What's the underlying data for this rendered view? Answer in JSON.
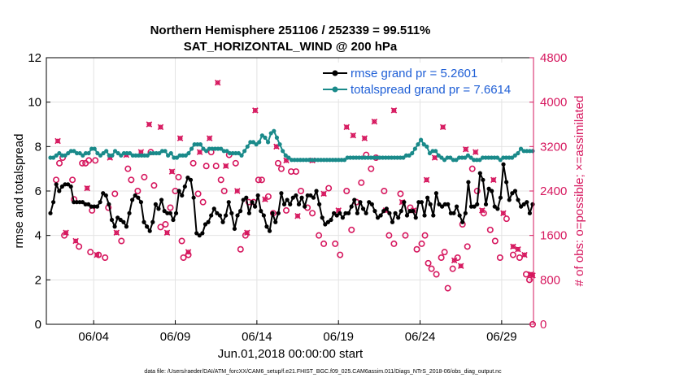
{
  "colors": {
    "black": "#000000",
    "teal": "#1a8a8a",
    "obs": "#d6175e",
    "legend_text": "#1f5fd6",
    "grid": "#e3e3e3"
  },
  "chart_data": {
    "type": "line",
    "title": "Northern Hemisphere 251106 / 252339 = 99.511%",
    "subtitle": "SAT_HORIZONTAL_WIND @ 200 hPa",
    "xlabel": "Jun.01,2018 00:00:00 start",
    "ylabel": "rmse and totalspread",
    "ylabel_right": "# of obs: o=possible; ×=assimilated",
    "footnote": "data file: /Users/raeder/DAI/ATM_forcXX/CAM6_setup/f.e21.FHIST_BGC.f09_025.CAM6assim.011/Diags_NTrS_2018-06/obs_diag_output.nc",
    "xlim": [
      0.6,
      30.45
    ],
    "ylim": [
      0,
      12
    ],
    "ylim_right": [
      0,
      4800
    ],
    "x_ticks": [
      {
        "x": 3.5,
        "label": "06/04"
      },
      {
        "x": 8.5,
        "label": "06/09"
      },
      {
        "x": 13.5,
        "label": "06/14"
      },
      {
        "x": 18.5,
        "label": "06/19"
      },
      {
        "x": 23.5,
        "label": "06/24"
      },
      {
        "x": 28.5,
        "label": "06/29"
      }
    ],
    "y_ticks": [
      "0",
      "2",
      "4",
      "6",
      "8",
      "10",
      "12"
    ],
    "y_ticks_right": [
      "0",
      "800",
      "1600",
      "2400",
      "3200",
      "4000",
      "4800"
    ],
    "grid": true,
    "series": [
      {
        "name": "rmse grand pr = 5.2601",
        "axis": "left",
        "values": [
          5.0,
          5.5,
          6.3,
          6.0,
          6.2,
          6.3,
          6.3,
          6.2,
          5.5,
          5.5,
          5.5,
          5.5,
          5.4,
          5.4,
          5.3,
          5.3,
          5.3,
          5.5,
          5.9,
          5.8,
          5.4,
          4.7,
          4.4,
          4.8,
          4.7,
          4.6,
          4.4,
          5.0,
          5.6,
          5.8,
          5.7,
          5.5,
          4.6,
          4.4,
          4.2,
          4.6,
          5.4,
          5.2,
          5.6,
          5.1,
          5.0,
          5.0,
          4.7,
          5.0,
          6.0,
          5.8,
          6.2,
          6.6,
          6.5,
          5.7,
          4.1,
          4.0,
          4.1,
          4.5,
          4.6,
          4.9,
          5.2,
          5.0,
          4.9,
          4.6,
          4.9,
          5.5,
          5.0,
          4.3,
          4.9,
          5.1,
          5.6,
          5.7,
          5.0,
          5.5,
          5.3,
          5.8,
          5.1,
          4.9,
          4.4,
          4.2,
          5.0,
          4.6,
          5.0,
          5.9,
          5.4,
          5.6,
          5.4,
          5.7,
          5.8,
          5.4,
          5.7,
          5.3,
          5.8,
          5.8,
          5.7,
          6.0,
          5.4,
          4.8,
          4.5,
          4.6,
          4.7,
          5.0,
          4.9,
          5.0,
          4.8,
          5.0,
          5.0,
          5.3,
          5.6,
          5.0,
          5.5,
          5.2,
          5.0,
          5.5,
          5.4,
          5.1,
          4.8,
          4.9,
          5.1,
          5.2,
          5.0,
          4.6,
          5.0,
          4.8,
          5.1,
          5.5,
          4.9,
          5.1,
          5.1,
          4.8,
          5.5,
          5.5,
          4.9,
          5.7,
          5.4,
          4.9,
          5.9,
          5.4,
          5.3,
          5.4,
          5.4,
          5.0,
          5.0,
          5.3,
          4.9,
          4.6,
          5.0,
          6.4,
          5.3,
          5.3,
          5.4,
          6.8,
          6.5,
          5.4,
          6.1,
          6.0,
          5.3,
          5.2,
          5.7,
          7.2,
          6.4,
          5.6,
          5.9,
          6.0,
          5.6,
          5.3,
          5.4,
          5.5,
          5.0,
          5.4
        ]
      },
      {
        "name": "totalspread grand pr = 7.6614",
        "axis": "left",
        "values": [
          7.5,
          7.5,
          7.6,
          7.7,
          7.6,
          7.6,
          7.7,
          7.8,
          7.8,
          7.7,
          7.7,
          7.6,
          7.7,
          7.7,
          7.9,
          7.9,
          7.7,
          7.6,
          7.7,
          7.8,
          7.6,
          7.6,
          7.8,
          7.7,
          7.6,
          7.7,
          7.7,
          7.7,
          7.6,
          7.6,
          7.6,
          7.6,
          7.6,
          7.6,
          7.7,
          7.7,
          7.7,
          7.7,
          7.8,
          7.8,
          7.6,
          7.7,
          7.5,
          7.5,
          7.6,
          7.6,
          7.6,
          7.7,
          7.9,
          8.1,
          8.1,
          8.1,
          7.9,
          7.8,
          7.9,
          7.9,
          7.9,
          7.9,
          7.9,
          7.8,
          7.8,
          7.7,
          7.7,
          7.7,
          7.7,
          7.6,
          7.8,
          8.0,
          8.2,
          8.2,
          8.1,
          8.2,
          8.5,
          8.4,
          8.2,
          8.6,
          8.7,
          8.4,
          8.1,
          7.8,
          7.6,
          7.5,
          7.4,
          7.4,
          7.4,
          7.4,
          7.4,
          7.4,
          7.4,
          7.4,
          7.4,
          7.4,
          7.4,
          7.4,
          7.4,
          7.4,
          7.4,
          7.4,
          7.4,
          7.4,
          7.4,
          7.5,
          7.5,
          7.5,
          7.5,
          7.5,
          7.5,
          7.5,
          7.5,
          7.5,
          7.5,
          7.5,
          7.5,
          7.5,
          7.5,
          7.5,
          7.5,
          7.5,
          7.5,
          7.5,
          7.5,
          7.6,
          7.6,
          7.7,
          7.9,
          8.1,
          8.3,
          8.1,
          8.0,
          7.7,
          7.8,
          7.8,
          7.6,
          7.5,
          7.4,
          7.5,
          7.5,
          7.4,
          7.4,
          7.5,
          7.5,
          7.5,
          7.6,
          7.5,
          7.4,
          7.4,
          7.4,
          7.5,
          7.5,
          7.5,
          7.5,
          7.5,
          7.5,
          7.4,
          7.5,
          7.5,
          7.5,
          7.5,
          7.6,
          7.7,
          7.9,
          7.8,
          7.8,
          7.8,
          7.8
        ]
      }
    ],
    "obs_possible": {
      "name": "# of obs possible",
      "axis": "right",
      "points": [
        [
          1.2,
          2600
        ],
        [
          1.4,
          2900
        ],
        [
          1.7,
          1600
        ],
        [
          1.6,
          3000
        ],
        [
          2.2,
          2600
        ],
        [
          2.3,
          2250
        ],
        [
          2.6,
          1400
        ],
        [
          2.8,
          2900
        ],
        [
          3.0,
          2900
        ],
        [
          3.2,
          2950
        ],
        [
          3.6,
          2950
        ],
        [
          3.4,
          2050
        ],
        [
          3.3,
          1300
        ],
        [
          3.8,
          1250
        ],
        [
          4.2,
          1200
        ],
        [
          4.4,
          2100
        ],
        [
          4.8,
          2350
        ],
        [
          5.2,
          1500
        ],
        [
          5.6,
          2800
        ],
        [
          5.8,
          2600
        ],
        [
          6.2,
          2400
        ],
        [
          6.6,
          2650
        ],
        [
          7.0,
          3100
        ],
        [
          7.2,
          2500
        ],
        [
          7.6,
          1750
        ],
        [
          7.9,
          1800
        ],
        [
          8.2,
          2100
        ],
        [
          8.5,
          2400
        ],
        [
          8.7,
          2650
        ],
        [
          8.9,
          1500
        ],
        [
          9.0,
          1200
        ],
        [
          9.3,
          1250
        ],
        [
          9.6,
          2900
        ],
        [
          9.9,
          2350
        ],
        [
          10.2,
          2200
        ],
        [
          10.4,
          2850
        ],
        [
          10.7,
          3100
        ],
        [
          11.0,
          2850
        ],
        [
          11.3,
          2600
        ],
        [
          11.5,
          2400
        ],
        [
          11.8,
          3050
        ],
        [
          12.2,
          2900
        ],
        [
          12.5,
          1350
        ],
        [
          12.8,
          1600
        ],
        [
          13.0,
          2200
        ],
        [
          13.3,
          2200
        ],
        [
          13.6,
          2600
        ],
        [
          13.8,
          2600
        ],
        [
          14.2,
          2300
        ],
        [
          14.5,
          2000
        ],
        [
          14.8,
          2900
        ],
        [
          15.0,
          2800
        ],
        [
          15.3,
          2050
        ],
        [
          15.6,
          2750
        ],
        [
          15.9,
          2750
        ],
        [
          16.2,
          2400
        ],
        [
          16.6,
          2100
        ],
        [
          16.9,
          2000
        ],
        [
          17.3,
          1600
        ],
        [
          17.6,
          1450
        ],
        [
          17.9,
          2450
        ],
        [
          18.3,
          1450
        ],
        [
          18.6,
          1250
        ],
        [
          19.0,
          2400
        ],
        [
          19.3,
          1700
        ],
        [
          19.6,
          2200
        ],
        [
          19.9,
          2550
        ],
        [
          20.2,
          3050
        ],
        [
          20.5,
          2800
        ],
        [
          20.8,
          3000
        ],
        [
          21.3,
          2400
        ],
        [
          21.6,
          1600
        ],
        [
          21.9,
          1450
        ],
        [
          22.3,
          2350
        ],
        [
          22.6,
          1600
        ],
        [
          22.9,
          2100
        ],
        [
          23.3,
          1350
        ],
        [
          23.6,
          1450
        ],
        [
          23.8,
          1600
        ],
        [
          24.0,
          1100
        ],
        [
          24.2,
          1000
        ],
        [
          24.5,
          900
        ],
        [
          24.8,
          1200
        ],
        [
          25.0,
          1300
        ],
        [
          25.2,
          650
        ],
        [
          25.5,
          1000
        ],
        [
          25.8,
          1200
        ],
        [
          26.1,
          1800
        ],
        [
          26.4,
          1400
        ],
        [
          26.7,
          2800
        ],
        [
          27.0,
          2400
        ],
        [
          27.4,
          2000
        ],
        [
          27.8,
          1700
        ],
        [
          28.1,
          1500
        ],
        [
          28.4,
          1200
        ],
        [
          28.8,
          1900
        ],
        [
          29.2,
          1250
        ],
        [
          29.6,
          1200
        ],
        [
          30.0,
          900
        ],
        [
          30.2,
          800
        ],
        [
          30.4,
          0
        ]
      ]
    },
    "obs_assimilated": {
      "name": "# of obs assimilated",
      "axis": "right",
      "points": [
        [
          1.3,
          3300
        ],
        [
          1.8,
          1650
        ],
        [
          2.4,
          1500
        ],
        [
          3.1,
          2450
        ],
        [
          3.7,
          1250
        ],
        [
          4.5,
          3000
        ],
        [
          4.9,
          1650
        ],
        [
          5.5,
          3050
        ],
        [
          6.4,
          3100
        ],
        [
          6.9,
          3600
        ],
        [
          7.6,
          3550
        ],
        [
          8.0,
          1650
        ],
        [
          8.3,
          2750
        ],
        [
          8.8,
          3350
        ],
        [
          9.3,
          1300
        ],
        [
          10.0,
          3100
        ],
        [
          10.6,
          3350
        ],
        [
          11.1,
          4350
        ],
        [
          11.6,
          2850
        ],
        [
          12.3,
          2400
        ],
        [
          12.9,
          1650
        ],
        [
          13.4,
          3850
        ],
        [
          14.0,
          2250
        ],
        [
          14.7,
          3200
        ],
        [
          15.3,
          2950
        ],
        [
          16.0,
          1950
        ],
        [
          16.9,
          2950
        ],
        [
          17.6,
          2350
        ],
        [
          18.5,
          2050
        ],
        [
          19.0,
          3550
        ],
        [
          19.4,
          3400
        ],
        [
          20.1,
          3350
        ],
        [
          20.7,
          3650
        ],
        [
          21.4,
          2050
        ],
        [
          21.9,
          3850
        ],
        [
          22.4,
          2200
        ],
        [
          23.1,
          2050
        ],
        [
          23.9,
          2600
        ],
        [
          24.4,
          3000
        ],
        [
          24.9,
          3550
        ],
        [
          25.6,
          1150
        ],
        [
          26.0,
          1050
        ],
        [
          26.3,
          3150
        ],
        [
          26.9,
          3100
        ],
        [
          27.3,
          2050
        ],
        [
          28.0,
          2600
        ],
        [
          28.6,
          2000
        ],
        [
          29.2,
          1400
        ],
        [
          29.5,
          1350
        ],
        [
          29.9,
          1250
        ],
        [
          30.3,
          900
        ],
        [
          30.4,
          880
        ]
      ]
    }
  }
}
